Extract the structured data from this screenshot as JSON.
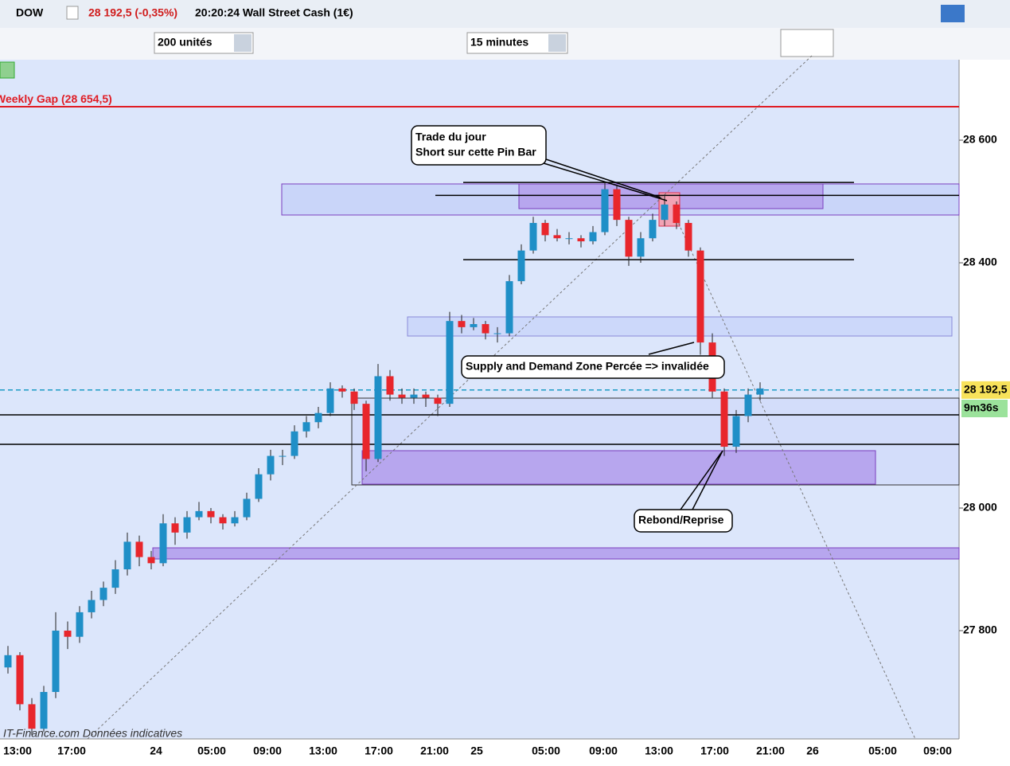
{
  "header": {
    "symbol": "DOW",
    "price_change": "28 192,5 (-0,35%)",
    "time_instrument": "20:20:24 Wall Street Cash (1€)",
    "units": "200 unités",
    "period": "15 minutes"
  },
  "footer": "IT-Finance.com  Données indicatives",
  "annotations": {
    "trade": [
      "Trade du jour",
      "Short sur cette Pin Bar"
    ],
    "zone": "Supply and Demand Zone Percée => invalidée",
    "rebound": "Rebond/Reprise"
  },
  "chart_data": {
    "type": "candlestick",
    "up_color": "#1f8fc7",
    "down_color": "#e8262c",
    "ylim": [
      27623.4,
      28731.2
    ],
    "yticks": [
      {
        "value": 28600,
        "label": "28 600"
      },
      {
        "value": 28400,
        "label": "28 400"
      },
      {
        "value": 28000,
        "label": "28 000"
      },
      {
        "value": 27800,
        "label": "27 800"
      }
    ],
    "xtick_labels": [
      "13:00",
      "17:00",
      "24",
      "05:00",
      "09:00",
      "13:00",
      "17:00",
      "21:00",
      "25",
      "05:00",
      "09:00",
      "13:00",
      "17:00",
      "21:00",
      "26",
      "05:00",
      "09:00"
    ],
    "weekly_gap": {
      "value": 28654.5,
      "label": "Weekly Gap (28 654,5)"
    },
    "last_price": {
      "value": 28192.5,
      "label": "28 192,5"
    },
    "countdown": "9m36s",
    "levels": [
      28531,
      28510,
      28405,
      28152,
      28104
    ],
    "candles": [
      [
        27740,
        27775,
        27730,
        27760
      ],
      [
        27760,
        27765,
        27670,
        27680
      ],
      [
        27680,
        27690,
        27630,
        27640
      ],
      [
        27640,
        27710,
        27635,
        27700
      ],
      [
        27700,
        27830,
        27690,
        27800
      ],
      [
        27800,
        27815,
        27770,
        27790
      ],
      [
        27790,
        27840,
        27780,
        27830
      ],
      [
        27830,
        27865,
        27820,
        27850
      ],
      [
        27850,
        27880,
        27840,
        27870
      ],
      [
        27870,
        27915,
        27860,
        27900
      ],
      [
        27900,
        27960,
        27890,
        27945
      ],
      [
        27945,
        27955,
        27905,
        27920
      ],
      [
        27920,
        27930,
        27900,
        27910
      ],
      [
        27910,
        27990,
        27905,
        27975
      ],
      [
        27975,
        27985,
        27940,
        27960
      ],
      [
        27960,
        27995,
        27950,
        27985
      ],
      [
        27985,
        28010,
        27980,
        27995
      ],
      [
        27995,
        28000,
        27975,
        27985
      ],
      [
        27985,
        27990,
        27965,
        27975
      ],
      [
        27975,
        27995,
        27970,
        27985
      ],
      [
        27985,
        28025,
        27980,
        28015
      ],
      [
        28015,
        28065,
        28010,
        28055
      ],
      [
        28055,
        28095,
        28045,
        28085
      ],
      [
        28085,
        28095,
        28070,
        28085
      ],
      [
        28085,
        28135,
        28080,
        28125
      ],
      [
        28125,
        28150,
        28115,
        28140
      ],
      [
        28140,
        28165,
        28130,
        28155
      ],
      [
        28155,
        28205,
        28150,
        28195
      ],
      [
        28195,
        28200,
        28180,
        28190
      ],
      [
        28190,
        28195,
        28160,
        28170
      ],
      [
        28170,
        28175,
        28060,
        28080
      ],
      [
        28080,
        28235,
        28075,
        28215
      ],
      [
        28215,
        28225,
        28175,
        28185
      ],
      [
        28185,
        28195,
        28170,
        28180
      ],
      [
        28180,
        28195,
        28170,
        28185
      ],
      [
        28185,
        28190,
        28165,
        28180
      ],
      [
        28180,
        28185,
        28150,
        28170
      ],
      [
        28170,
        28320,
        28165,
        28305
      ],
      [
        28305,
        28315,
        28285,
        28295
      ],
      [
        28295,
        28310,
        28290,
        28300
      ],
      [
        28300,
        28305,
        28275,
        28285
      ],
      [
        28285,
        28295,
        28270,
        28285
      ],
      [
        28285,
        28380,
        28280,
        28370
      ],
      [
        28370,
        28430,
        28365,
        28420
      ],
      [
        28420,
        28475,
        28415,
        28465
      ],
      [
        28465,
        28470,
        28435,
        28445
      ],
      [
        28445,
        28455,
        28435,
        28440
      ],
      [
        28440,
        28450,
        28430,
        28440
      ],
      [
        28440,
        28445,
        28425,
        28435
      ],
      [
        28435,
        28460,
        28430,
        28450
      ],
      [
        28450,
        28530,
        28445,
        28520
      ],
      [
        28520,
        28525,
        28460,
        28470
      ],
      [
        28470,
        28475,
        28395,
        28410
      ],
      [
        28410,
        28450,
        28400,
        28440
      ],
      [
        28440,
        28480,
        28435,
        28470
      ],
      [
        28470,
        28510,
        28460,
        28495
      ],
      [
        28495,
        28500,
        28455,
        28465
      ],
      [
        28465,
        28470,
        28410,
        28420
      ],
      [
        28420,
        28425,
        28250,
        28270
      ],
      [
        28270,
        28285,
        28180,
        28190
      ],
      [
        28190,
        28195,
        28085,
        28100
      ],
      [
        28100,
        28160,
        28090,
        28150
      ],
      [
        28150,
        28195,
        28140,
        28185
      ],
      [
        28185,
        28205,
        28175,
        28195
      ]
    ]
  }
}
